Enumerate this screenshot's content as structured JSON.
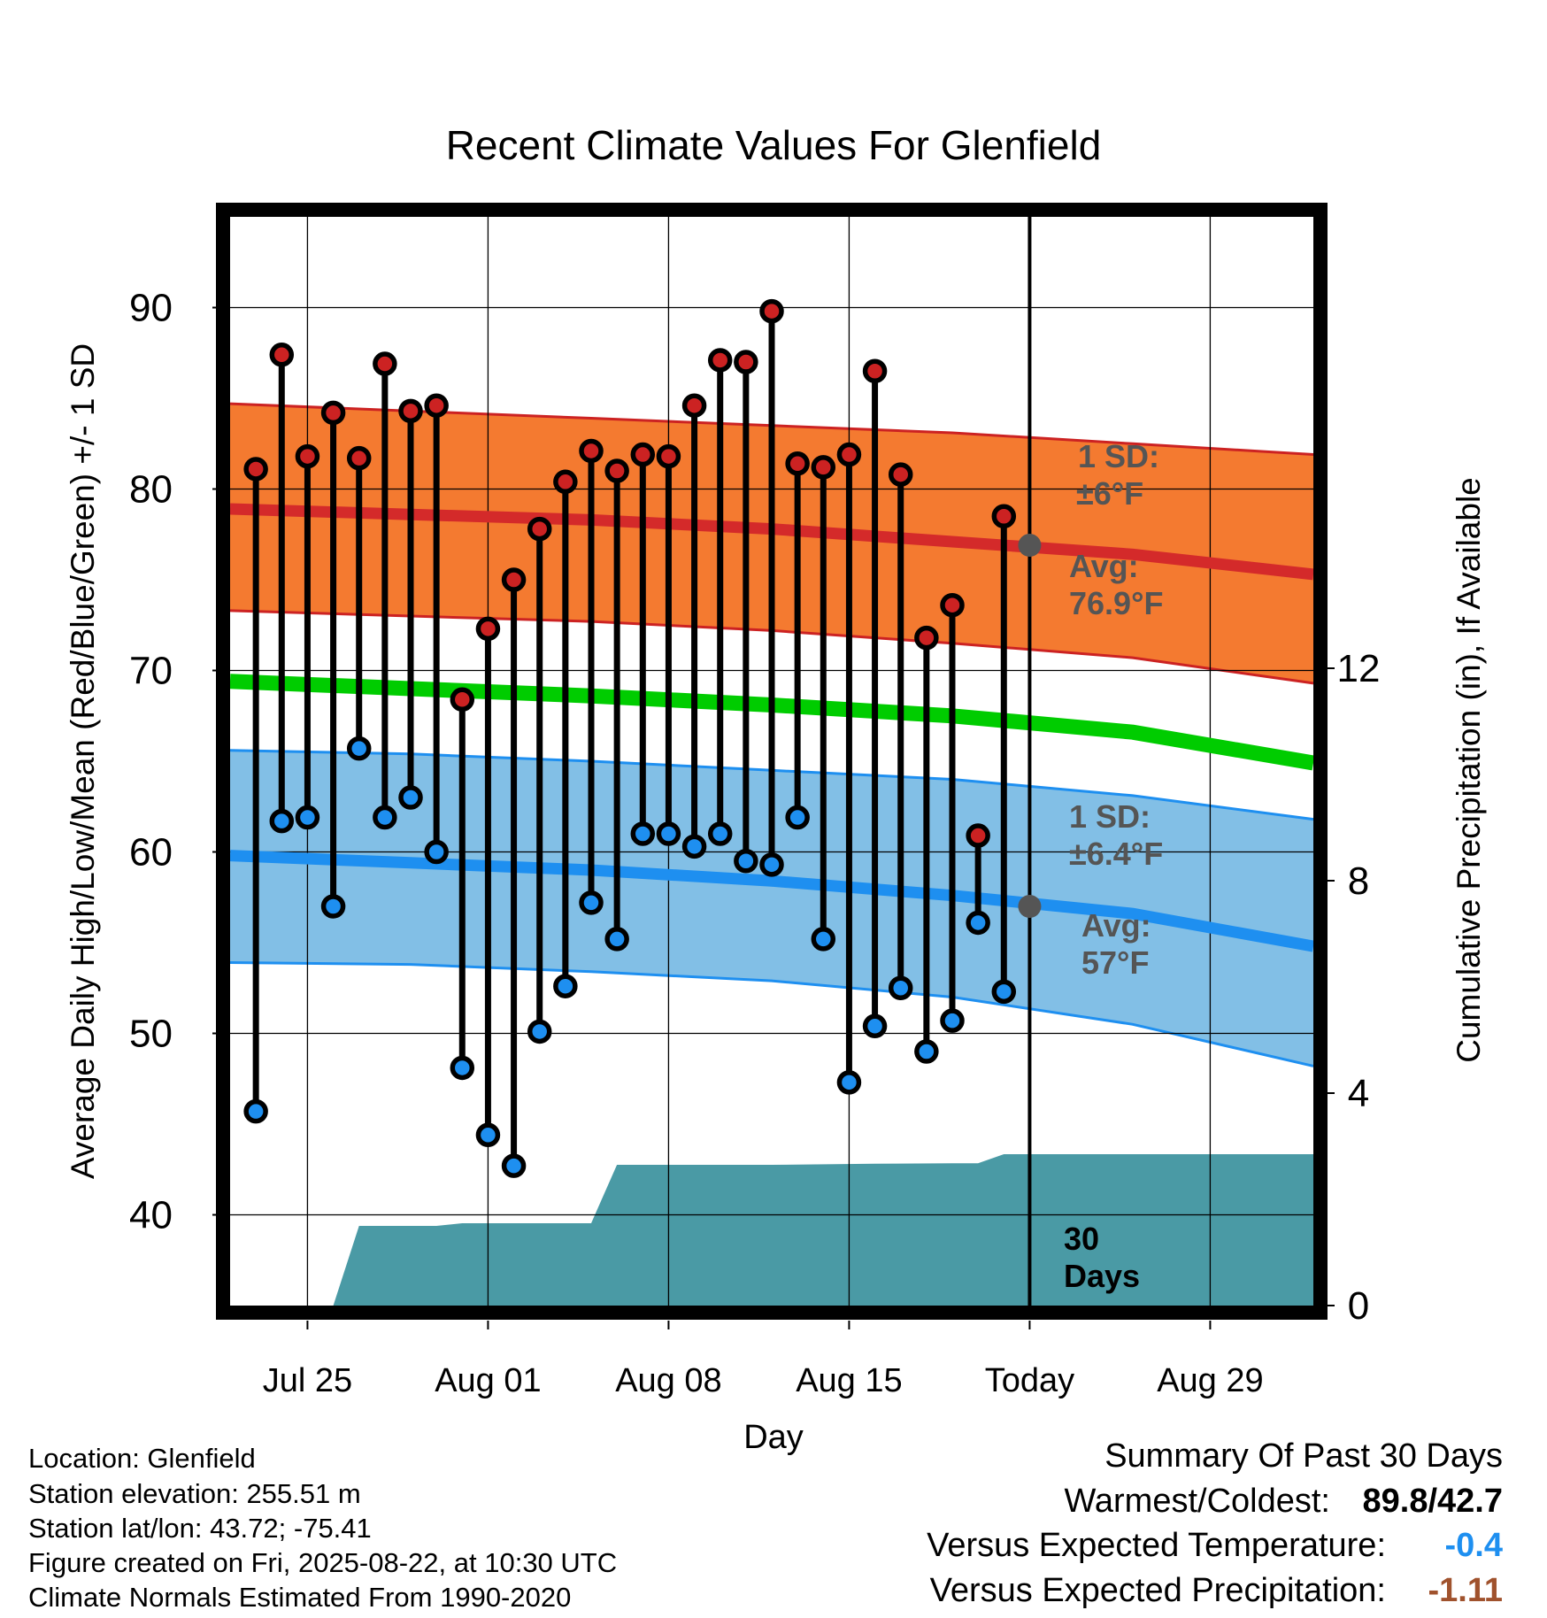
{
  "chart_data": {
    "type": "scatter",
    "title": "Recent Climate Values For Glenfield",
    "xlabel": "Day",
    "ylabel_left": "Average Daily High/Low/Mean (Red/Blue/Green) +/- 1 SD",
    "ylabel_right": "Cumulative Precipitation (in), If Available",
    "x_ticks": [
      "Jul 25",
      "Aug 01",
      "Aug 08",
      "Aug 15",
      "Today",
      "Aug 29"
    ],
    "x_range": [
      "2025-07-22",
      "2025-09-02"
    ],
    "ylim_left": [
      35,
      95
    ],
    "y_ticks_left": [
      40,
      50,
      60,
      70,
      80,
      90
    ],
    "ylim_right": [
      0,
      20.5
    ],
    "y_ticks_right": [
      0,
      4,
      8,
      12
    ],
    "grid": true,
    "today": "2025-08-22",
    "dates": [
      "2025-07-23",
      "2025-07-24",
      "2025-07-25",
      "2025-07-26",
      "2025-07-27",
      "2025-07-28",
      "2025-07-29",
      "2025-07-30",
      "2025-07-31",
      "2025-08-01",
      "2025-08-02",
      "2025-08-03",
      "2025-08-04",
      "2025-08-05",
      "2025-08-06",
      "2025-08-07",
      "2025-08-08",
      "2025-08-09",
      "2025-08-10",
      "2025-08-11",
      "2025-08-12",
      "2025-08-13",
      "2025-08-14",
      "2025-08-15",
      "2025-08-16",
      "2025-08-17",
      "2025-08-18",
      "2025-08-19",
      "2025-08-20",
      "2025-08-21"
    ],
    "series": [
      {
        "name": "High",
        "color": "#cc2222",
        "values": [
          81.1,
          87.4,
          81.8,
          84.2,
          81.7,
          86.9,
          84.3,
          84.6,
          68.4,
          72.3,
          75.0,
          77.8,
          80.4,
          82.1,
          81.0,
          81.9,
          81.8,
          84.6,
          87.1,
          87.0,
          89.8,
          81.4,
          81.2,
          81.9,
          86.5,
          80.8,
          71.8,
          73.6,
          60.9,
          78.5
        ]
      },
      {
        "name": "Low",
        "color": "#1e8ff0",
        "values": [
          45.7,
          61.7,
          61.9,
          57.0,
          65.7,
          61.9,
          63.0,
          60.0,
          48.1,
          44.4,
          42.7,
          50.1,
          52.6,
          57.2,
          55.2,
          61.0,
          61.0,
          60.3,
          61.0,
          59.5,
          59.3,
          61.9,
          55.2,
          47.3,
          50.4,
          52.5,
          49.0,
          50.7,
          56.1,
          52.3
        ]
      }
    ],
    "normals": {
      "dates": [
        "2025-07-22",
        "2025-07-29",
        "2025-08-05",
        "2025-08-12",
        "2025-08-19",
        "2025-08-26",
        "2025-09-02"
      ],
      "high_mean": [
        78.9,
        78.6,
        78.3,
        77.8,
        77.1,
        76.4,
        75.3
      ],
      "high_sd_upper": [
        84.7,
        84.3,
        83.9,
        83.5,
        83.1,
        82.5,
        81.9
      ],
      "high_sd_lower": [
        73.3,
        73.0,
        72.7,
        72.2,
        71.5,
        70.7,
        69.3
      ],
      "mean": [
        69.4,
        69.0,
        68.6,
        68.1,
        67.5,
        66.6,
        64.9
      ],
      "low_mean": [
        59.8,
        59.4,
        59.0,
        58.4,
        57.6,
        56.6,
        54.8
      ],
      "low_sd_upper": [
        65.6,
        65.4,
        65.0,
        64.5,
        64.0,
        63.1,
        61.8
      ],
      "low_sd_lower": [
        53.9,
        53.8,
        53.4,
        52.9,
        52.0,
        50.5,
        48.2
      ]
    },
    "today_markers": {
      "high_avg": 76.9,
      "low_avg": 57.0
    },
    "precip": {
      "dates": [
        "2025-07-26",
        "2025-07-27",
        "2025-07-30",
        "2025-07-31",
        "2025-08-05",
        "2025-08-06",
        "2025-08-12",
        "2025-08-16",
        "2025-08-19",
        "2025-08-20",
        "2025-08-21",
        "2025-09-02"
      ],
      "values": [
        0.0,
        1.5,
        1.5,
        1.55,
        1.55,
        2.65,
        2.65,
        2.67,
        2.68,
        2.68,
        2.85,
        2.85
      ]
    },
    "annotations": {
      "high_sd_label": [
        "1 SD:",
        "±6°F"
      ],
      "high_avg_label": [
        "Avg:",
        "76.9°F"
      ],
      "low_sd_label": [
        "1 SD:",
        "±6.4°F"
      ],
      "low_avg_label": [
        "Avg:",
        "57°F"
      ],
      "days_label": [
        "30",
        "Days"
      ]
    }
  },
  "footer": {
    "location": "Location: Glenfield",
    "elevation": "Station elevation: 255.51 m",
    "latlon": "Station lat/lon: 43.72; -75.41",
    "created": "Figure created on Fri, 2025-08-22, at 10:30 UTC",
    "normals": "Climate Normals Estimated From 1990-2020"
  },
  "summary": {
    "title": "Summary Of Past 30 Days",
    "warm_cold_label": "Warmest/Coldest:",
    "warm_cold_value": "89.8/42.7",
    "temp_label": "Versus Expected Temperature:",
    "temp_value": "-0.4",
    "temp_color": "#1e8ff0",
    "precip_label": "Versus Expected Precipitation:",
    "precip_value": "-1.11",
    "precip_color": "#a0522d"
  }
}
